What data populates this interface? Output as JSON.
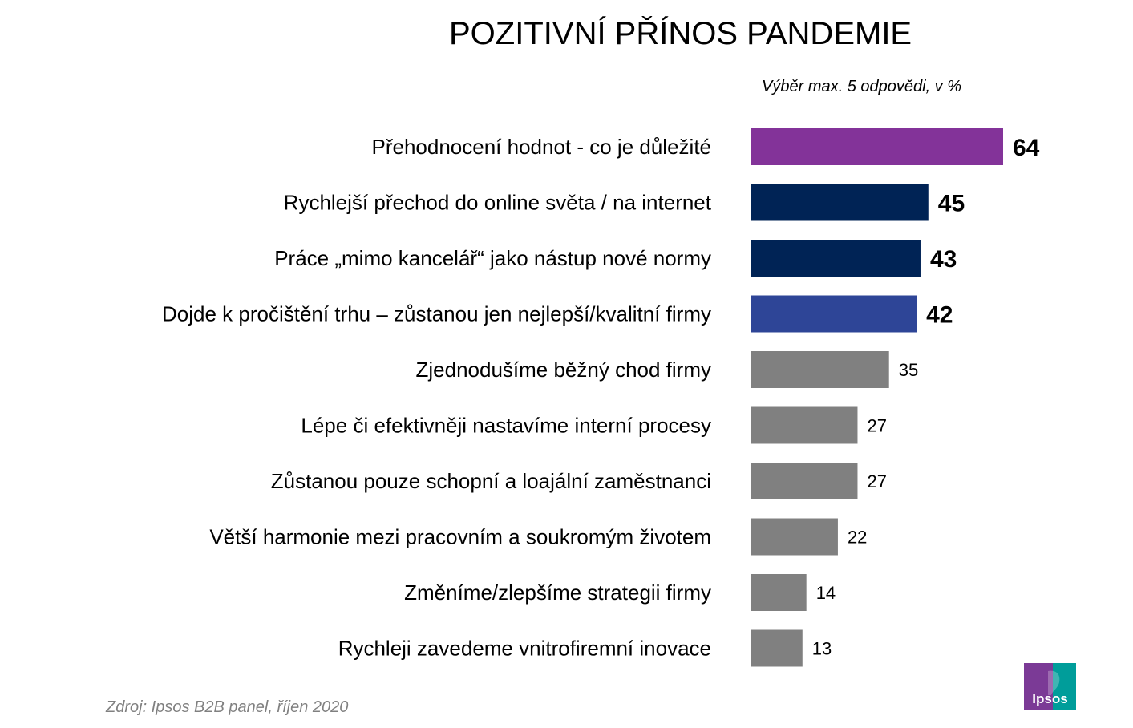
{
  "chart_data": {
    "type": "bar",
    "orientation": "horizontal",
    "title": "POZITIVNÍ PŘÍNOS PANDEMIE",
    "subtitle": "Výběr max. 5 odpovědi, v %",
    "categories": [
      "Přehodnocení hodnot - co je důležité",
      "Rychlejší přechod do online světa / na internet",
      "Práce „mimo kancelář“ jako nástup nové normy",
      "Dojde k pročištění trhu – zůstanou jen nejlepší/kvalitní firmy",
      "Zjednodušíme běžný chod firmy",
      "Lépe či efektivněji nastavíme interní procesy",
      "Zůstanou pouze schopní a loajální zaměstnanci",
      "Větší harmonie mezi pracovním a soukromým životem",
      "Změníme/zlepšíme strategii firmy",
      "Rychleji zavedeme vnitrofiremní inovace"
    ],
    "values": [
      64,
      45,
      43,
      42,
      35,
      27,
      27,
      22,
      14,
      13
    ],
    "colors": [
      "#833399",
      "#002355",
      "#002355",
      "#2E4597",
      "#808080",
      "#808080",
      "#808080",
      "#808080",
      "#808080",
      "#808080"
    ],
    "emphasized": [
      true,
      true,
      true,
      true,
      false,
      false,
      false,
      false,
      false,
      false
    ],
    "xlim": [
      0,
      100
    ],
    "grid": false,
    "legend": "none"
  },
  "source": "Zdroj: Ipsos B2B panel, říjen 2020",
  "logo": {
    "text": "Ipsos",
    "colors": {
      "left": "#7B3A96",
      "right": "#009D9A",
      "text": "#ffffff"
    }
  }
}
